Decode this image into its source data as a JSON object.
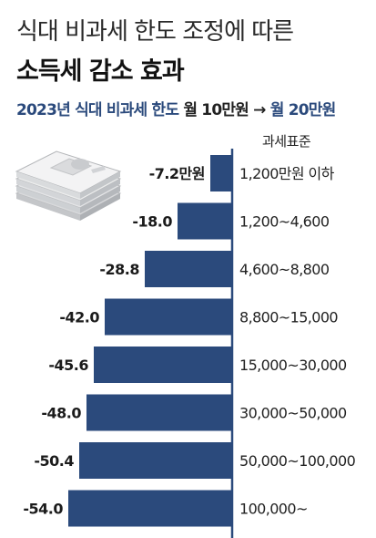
{
  "title_line1": "식대 비과세 한도 조정에 따른",
  "title_line2": "소득세 감소 효과",
  "subtitle_part1": "2023년 식대 비과세 한도",
  "subtitle_part2": "월 10만원",
  "subtitle_arrow": "→",
  "subtitle_part3": "월 20만원",
  "column_header": "과세표준",
  "colors": {
    "bar": "#2b4a7c",
    "axis": "#2b4a7c",
    "accent": "#2b4a7c"
  },
  "icon": "money-stack-icon",
  "chart_data": {
    "type": "bar",
    "orientation": "horizontal",
    "categories": [
      "1,200만원 이하",
      "1,200~4,600",
      "4,600~8,800",
      "8,800~15,000",
      "15,000~30,000",
      "30,000~50,000",
      "50,000~100,000",
      "100,000~"
    ],
    "values": [
      -7.2,
      -18.0,
      -28.8,
      -42.0,
      -45.6,
      -48.0,
      -50.4,
      -54.0
    ],
    "value_labels": [
      "-7.2만원",
      "-18.0",
      "-28.8",
      "-42.0",
      "-45.6",
      "-48.0",
      "-50.4",
      "-54.0"
    ],
    "xlim": [
      -54.0,
      0
    ]
  }
}
